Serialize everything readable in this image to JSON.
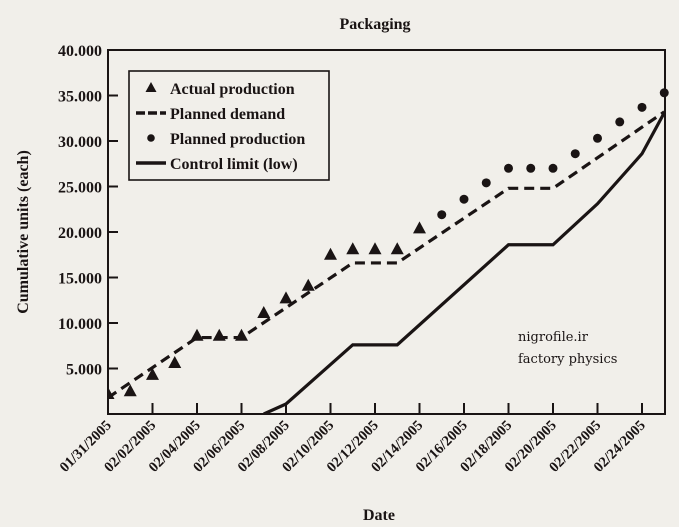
{
  "chart_data": {
    "type": "line",
    "title": "Packaging",
    "xlabel": "Date",
    "ylabel": "Cumulative units (each)",
    "ylim": [
      0,
      40000
    ],
    "xlim_days": [
      0,
      25
    ],
    "x_start_date": "01/31/2005",
    "x_tick_labels": [
      "01/31/2005",
      "02/02/2005",
      "02/04/2005",
      "02/06/2005",
      "02/08/2005",
      "02/10/2005",
      "02/12/2005",
      "02/14/2005",
      "02/16/2005",
      "02/18/2005",
      "02/20/2005",
      "02/22/2005",
      "02/24/2005"
    ],
    "x_tick_days": [
      0,
      2,
      4,
      6,
      8,
      10,
      12,
      14,
      16,
      18,
      20,
      22,
      24
    ],
    "y_tick_labels": [
      "5.000",
      "10.000",
      "15.000",
      "20.000",
      "25.000",
      "30.000",
      "35.000",
      "40.000"
    ],
    "y_tick_values": [
      5000,
      10000,
      15000,
      20000,
      25000,
      30000,
      35000,
      40000
    ],
    "grid": false,
    "legend_position": "top-left",
    "series": [
      {
        "name": "Actual production",
        "style": "triangle-markers",
        "x_days": [
          0,
          1,
          2,
          3,
          4,
          5,
          6,
          7,
          8,
          9,
          10,
          11,
          12,
          13,
          14
        ],
        "values": [
          2200,
          2500,
          4300,
          5600,
          8600,
          8600,
          8600,
          11100,
          12700,
          14100,
          17500,
          18100,
          18100,
          18100,
          20400
        ]
      },
      {
        "name": "Planned demand",
        "style": "dashed-line",
        "x_days": [
          0,
          4,
          6,
          11,
          13,
          18,
          20,
          25
        ],
        "values": [
          1800,
          8400,
          8400,
          16600,
          16600,
          24800,
          24800,
          33200
        ]
      },
      {
        "name": "Planned production",
        "style": "circle-markers",
        "x_days": [
          15,
          16,
          17,
          18,
          19,
          20,
          21,
          22,
          23,
          24,
          25
        ],
        "values": [
          21900,
          23600,
          25400,
          27000,
          27000,
          27000,
          28600,
          30300,
          32100,
          33700,
          35300
        ]
      },
      {
        "name": "Control limit (low)",
        "style": "solid-line",
        "x_days": [
          7,
          8,
          11,
          13,
          18,
          20,
          22,
          24,
          25
        ],
        "values": [
          0,
          1100,
          7600,
          7600,
          18600,
          18600,
          23100,
          28600,
          33100
        ]
      }
    ],
    "annotations": [
      "nigrofile.ir",
      "factory physics"
    ]
  },
  "colors": {
    "background": "#f1efea",
    "ink": "#1a1414"
  }
}
